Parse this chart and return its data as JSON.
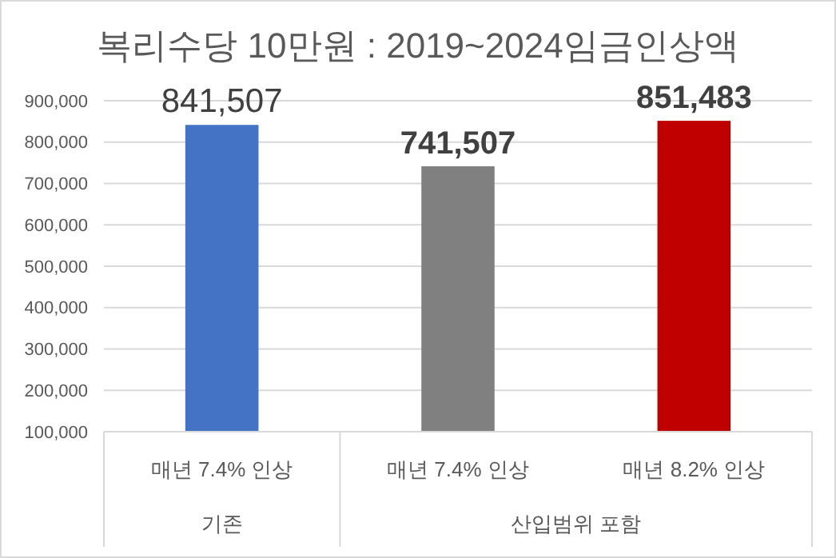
{
  "chart_data": {
    "type": "bar",
    "title": "복리수당 10만원 : 2019~2024임금인상액",
    "categories": [
      "매년 7.4% 인상",
      "매년 7.4% 인상",
      "매년 8.2% 인상"
    ],
    "values": [
      841507,
      741507,
      851483
    ],
    "colors": [
      "#4472c4",
      "#808080",
      "#c00000"
    ],
    "ylim": [
      100000,
      900000
    ],
    "yticks": [
      {
        "value": 100000,
        "label": "100,000"
      },
      {
        "value": 200000,
        "label": "200,000"
      },
      {
        "value": 300000,
        "label": "300,000"
      },
      {
        "value": 400000,
        "label": "400,000"
      },
      {
        "value": 500000,
        "label": "500,000"
      },
      {
        "value": 600000,
        "label": "600,000"
      },
      {
        "value": 700000,
        "label": "700,000"
      },
      {
        "value": 800000,
        "label": "800,000"
      },
      {
        "value": 900000,
        "label": "900,000"
      }
    ],
    "value_labels": [
      "841,507",
      "741,507",
      "851,483"
    ],
    "grid": "y",
    "annotations": [
      "기존",
      "산입범위 포함"
    ]
  }
}
